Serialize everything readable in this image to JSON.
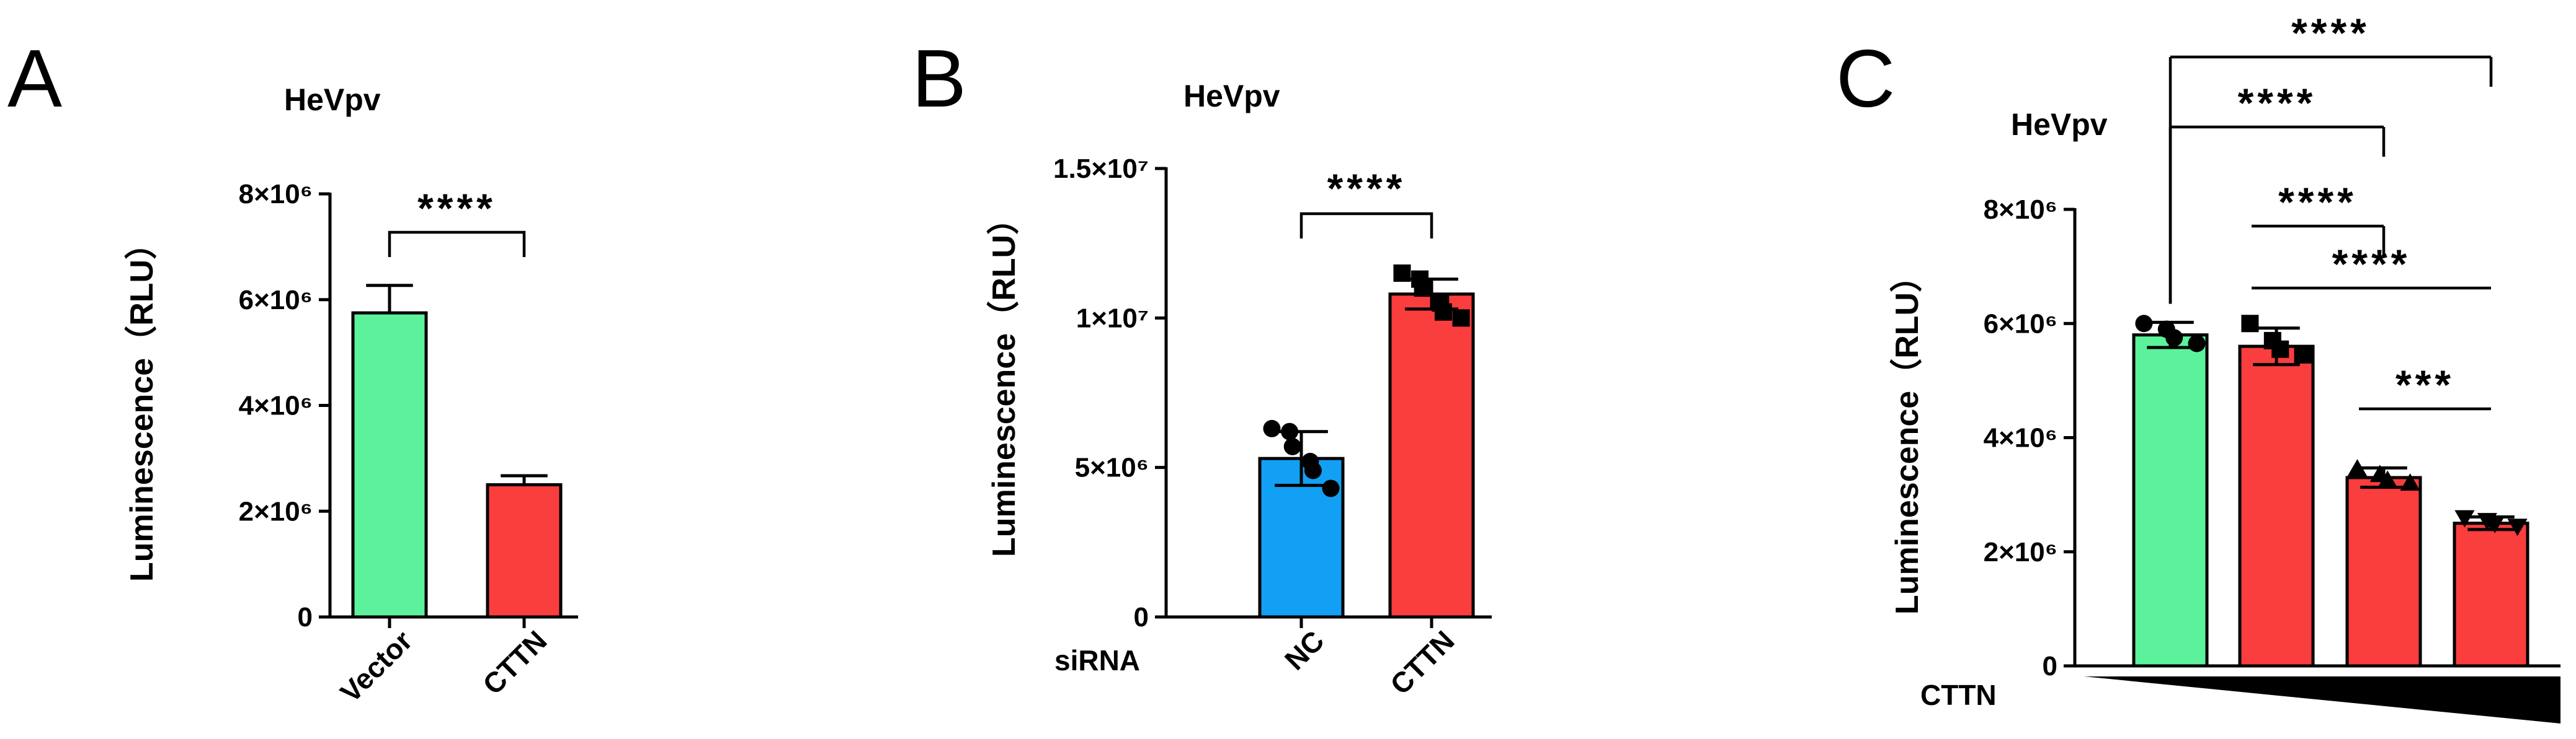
{
  "chart_data": [
    {
      "panel": "A",
      "type": "bar",
      "title": "HeVpv",
      "ylabel": "Luminescence（RLU）",
      "ylim": [
        0,
        8000000
      ],
      "yticks": [
        0,
        2000000,
        4000000,
        6000000,
        8000000
      ],
      "ytick_labels": [
        "0",
        "2×10⁶",
        "4×10⁶",
        "6×10⁶",
        "8×10⁶"
      ],
      "categories": [
        "Vector",
        "CTTN"
      ],
      "values": [
        5750000,
        2500000
      ],
      "errors": [
        520000,
        170000
      ],
      "colors": [
        "#5cf29b",
        "#fa3d3d"
      ],
      "significance": [
        {
          "from": 0,
          "to": 1,
          "label": "****"
        }
      ]
    },
    {
      "panel": "B",
      "type": "bar",
      "title": "HeVpv",
      "ylabel": "Luminescence（RLU）",
      "xlabel": "siRNA",
      "ylim": [
        0,
        15000000
      ],
      "yticks": [
        0,
        5000000,
        10000000,
        15000000
      ],
      "ytick_labels": [
        "0",
        "5×10⁶",
        "1×10⁷",
        "1.5×10⁷"
      ],
      "categories": [
        "NC",
        "CTTN"
      ],
      "values": [
        5300000,
        10800000
      ],
      "errors": [
        900000,
        500000
      ],
      "colors": [
        "#12a0f4",
        "#fa3d3d"
      ],
      "points": [
        [
          6300000,
          6200000,
          5700000,
          5200000,
          4900000,
          4300000
        ],
        [
          11500000,
          11300000,
          11000000,
          10500000,
          10200000,
          10000000
        ]
      ],
      "markers": [
        "circle",
        "square"
      ],
      "significance": [
        {
          "from": 0,
          "to": 1,
          "label": "****"
        }
      ]
    },
    {
      "panel": "C",
      "type": "bar",
      "title": "HeVpv",
      "ylabel": "Luminescence（RLU）",
      "xlabel": "CTTN",
      "ylim": [
        0,
        8000000
      ],
      "yticks": [
        0,
        2000000,
        4000000,
        6000000,
        8000000
      ],
      "ytick_labels": [
        "0",
        "2×10⁶",
        "4×10⁶",
        "6×10⁶",
        "8×10⁶"
      ],
      "categories": [
        "",
        "",
        "",
        ""
      ],
      "values": [
        5800000,
        5600000,
        3300000,
        2500000
      ],
      "errors": [
        220000,
        320000,
        170000,
        110000
      ],
      "colors": [
        "#5cf29b",
        "#fa3d3d",
        "#fa3d3d",
        "#fa3d3d"
      ],
      "points": [
        [
          6000000,
          5900000,
          5750000,
          5650000
        ],
        [
          6000000,
          5700000,
          5550000,
          5450000
        ],
        [
          3450000,
          3350000,
          3250000,
          3200000
        ],
        [
          2600000,
          2550000,
          2500000,
          2450000
        ]
      ],
      "markers": [
        "circle",
        "square",
        "triangle-up",
        "triangle-down"
      ],
      "gradient": "increasing",
      "significance": [
        {
          "from": 0,
          "to": 3,
          "label": "****"
        },
        {
          "from": 0,
          "to": 2,
          "label": "****"
        },
        {
          "from": 1,
          "to": 2,
          "label": "****"
        },
        {
          "from": 1,
          "to": 3,
          "label": "****"
        },
        {
          "from": 2,
          "to": 3,
          "label": "***"
        }
      ]
    }
  ]
}
